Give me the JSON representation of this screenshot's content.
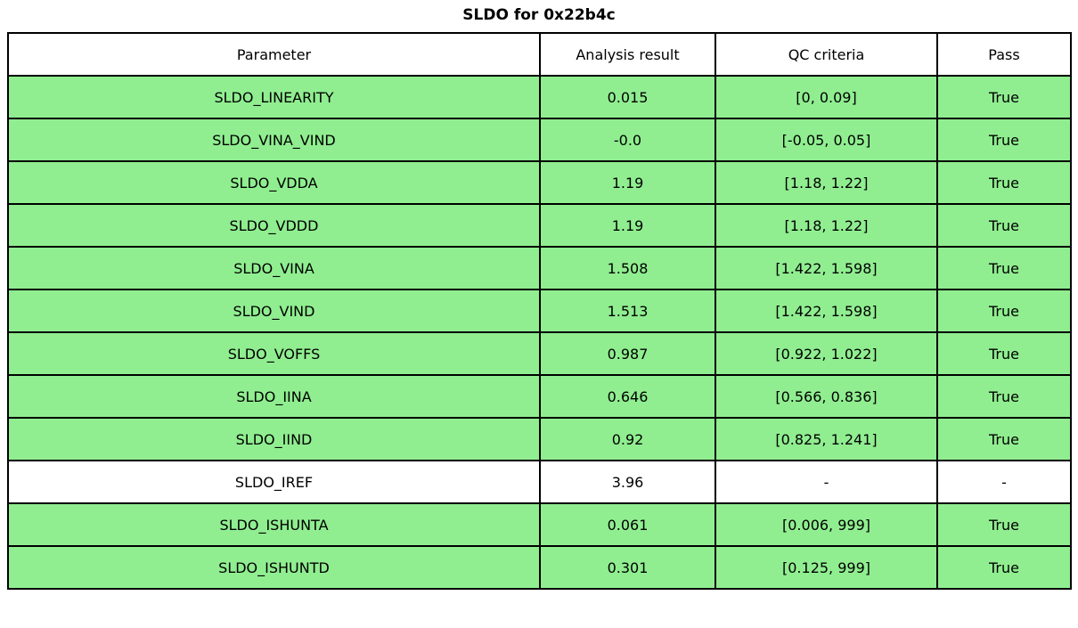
{
  "title": "SLDO for 0x22b4c",
  "colors": {
    "pass_row": "#90ee90",
    "neutral_row": "#ffffff",
    "border": "#000000",
    "text": "#000000",
    "background": "#ffffff"
  },
  "chart_data": {
    "type": "table",
    "title": "SLDO for 0x22b4c",
    "columns": [
      "Parameter",
      "Analysis result",
      "QC criteria",
      "Pass"
    ],
    "rows": [
      {
        "parameter": "SLDO_LINEARITY",
        "analysis_result": "0.015",
        "qc_criteria": "[0, 0.09]",
        "pass": "True",
        "highlighted": true
      },
      {
        "parameter": "SLDO_VINA_VIND",
        "analysis_result": "-0.0",
        "qc_criteria": "[-0.05, 0.05]",
        "pass": "True",
        "highlighted": true
      },
      {
        "parameter": "SLDO_VDDA",
        "analysis_result": "1.19",
        "qc_criteria": "[1.18, 1.22]",
        "pass": "True",
        "highlighted": true
      },
      {
        "parameter": "SLDO_VDDD",
        "analysis_result": "1.19",
        "qc_criteria": "[1.18, 1.22]",
        "pass": "True",
        "highlighted": true
      },
      {
        "parameter": "SLDO_VINA",
        "analysis_result": "1.508",
        "qc_criteria": "[1.422, 1.598]",
        "pass": "True",
        "highlighted": true
      },
      {
        "parameter": "SLDO_VIND",
        "analysis_result": "1.513",
        "qc_criteria": "[1.422, 1.598]",
        "pass": "True",
        "highlighted": true
      },
      {
        "parameter": "SLDO_VOFFS",
        "analysis_result": "0.987",
        "qc_criteria": "[0.922, 1.022]",
        "pass": "True",
        "highlighted": true
      },
      {
        "parameter": "SLDO_IINA",
        "analysis_result": "0.646",
        "qc_criteria": "[0.566, 0.836]",
        "pass": "True",
        "highlighted": true
      },
      {
        "parameter": "SLDO_IIND",
        "analysis_result": "0.92",
        "qc_criteria": "[0.825, 1.241]",
        "pass": "True",
        "highlighted": true
      },
      {
        "parameter": "SLDO_IREF",
        "analysis_result": "3.96",
        "qc_criteria": "-",
        "pass": "-",
        "highlighted": false
      },
      {
        "parameter": "SLDO_ISHUNTA",
        "analysis_result": "0.061",
        "qc_criteria": "[0.006, 999]",
        "pass": "True",
        "highlighted": true
      },
      {
        "parameter": "SLDO_ISHUNTD",
        "analysis_result": "0.301",
        "qc_criteria": "[0.125, 999]",
        "pass": "True",
        "highlighted": true
      }
    ]
  }
}
